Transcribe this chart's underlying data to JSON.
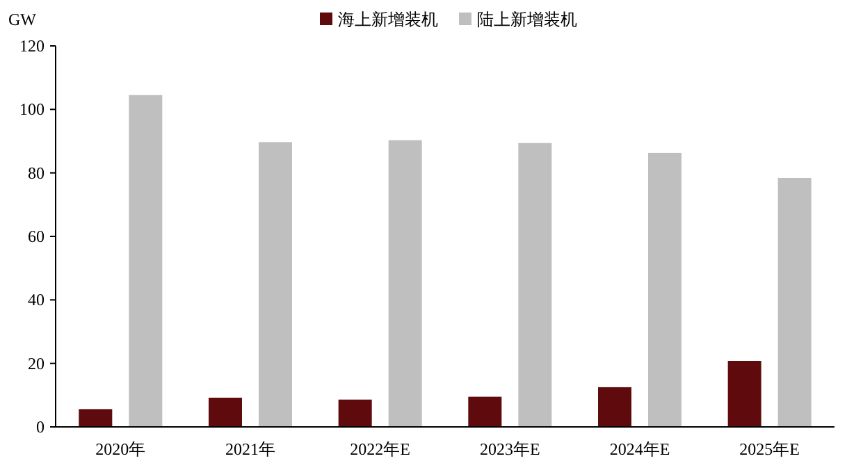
{
  "chart_data": {
    "type": "bar",
    "ylabel": "GW",
    "categories": [
      "2020年",
      "2021年",
      "2022年E",
      "2023年E",
      "2024年E",
      "2025年E"
    ],
    "series": [
      {
        "name": "海上新增装机",
        "color": "#5f0a0c",
        "values": [
          5.6,
          9.2,
          8.6,
          9.5,
          12.5,
          20.8
        ]
      },
      {
        "name": "陆上新增装机",
        "color": "#bfbfbf",
        "values": [
          104.5,
          89.7,
          90.3,
          89.4,
          86.3,
          78.4
        ]
      }
    ],
    "ylim": [
      0,
      120
    ],
    "yticks": [
      0,
      20,
      40,
      60,
      80,
      100,
      120
    ],
    "legend": "top",
    "grid": false
  }
}
